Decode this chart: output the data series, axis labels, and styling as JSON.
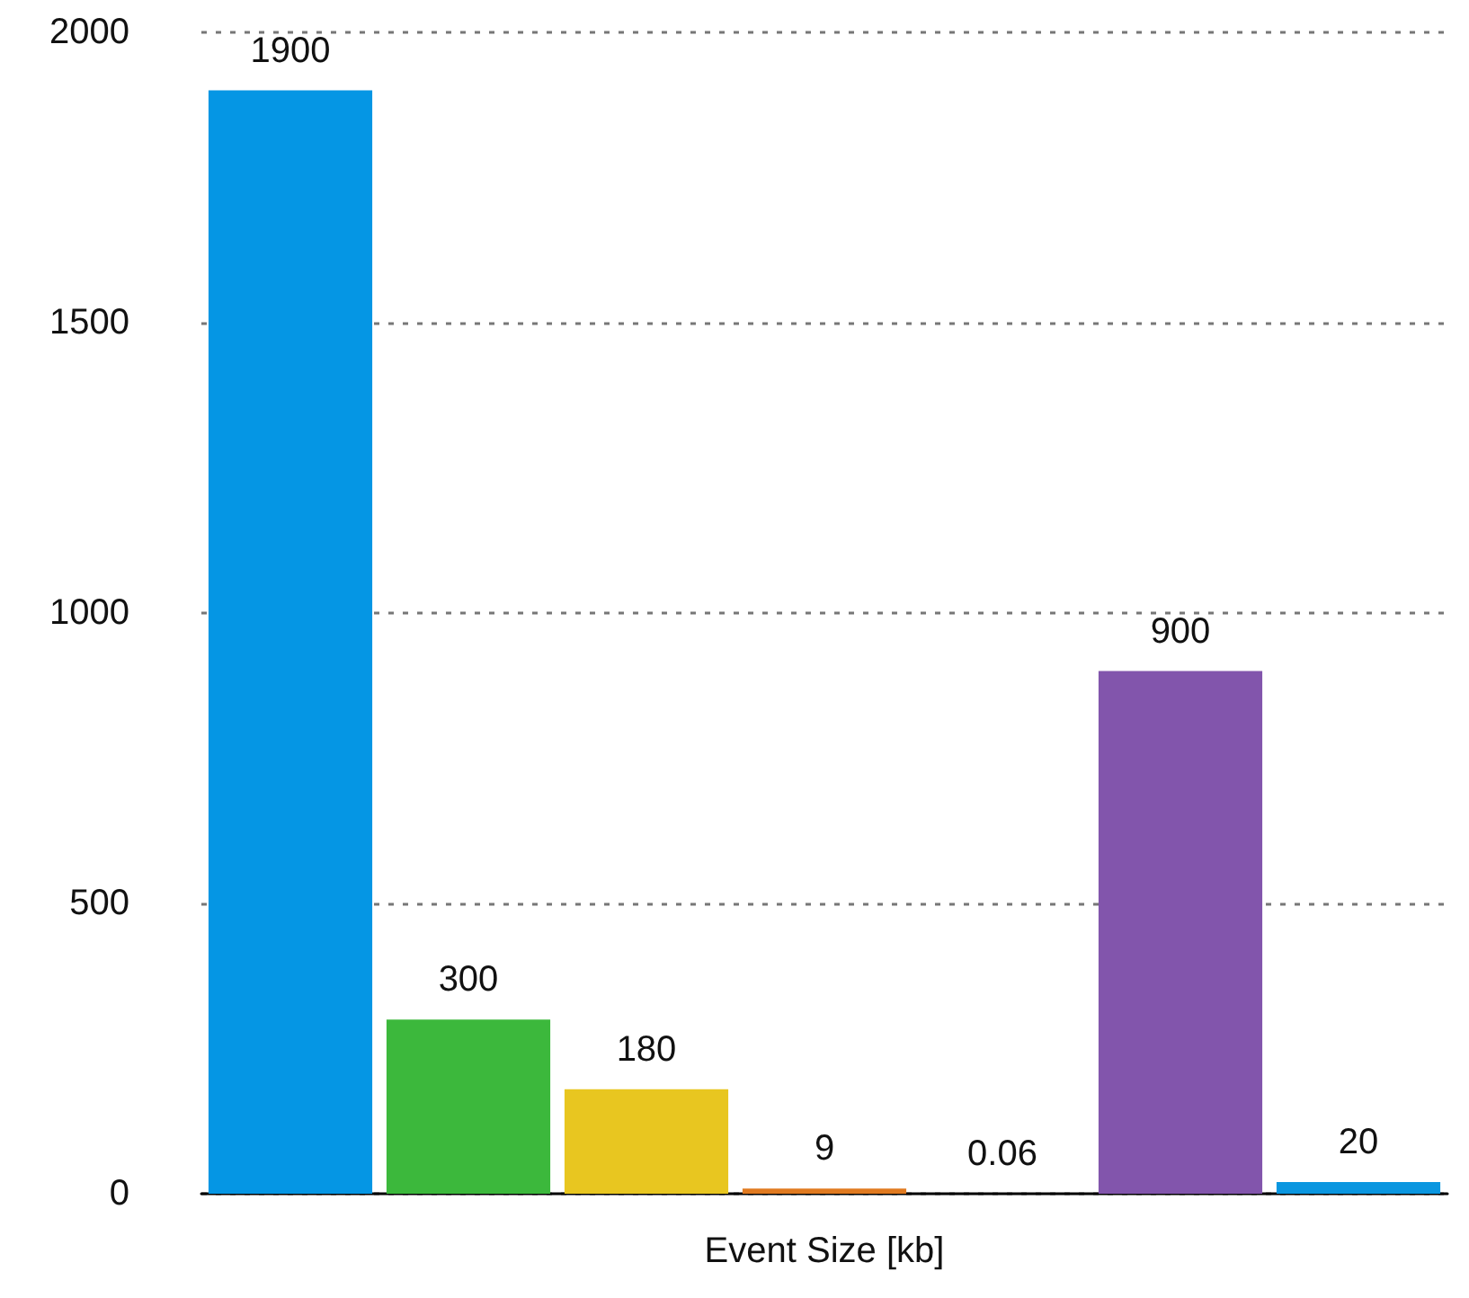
{
  "chart_data": {
    "type": "bar",
    "xlabel": "Event Size [kb]",
    "categories": [
      null,
      null,
      null,
      null,
      null,
      null,
      null
    ],
    "values": [
      1900,
      300,
      180,
      9,
      0.06,
      900,
      20
    ],
    "colors": [
      "#0596e4",
      "#3cb83c",
      "#e8c620",
      "#e07a20",
      "#d04030",
      "#8255ac",
      "#0a96e0"
    ],
    "ylim": [
      0,
      2000
    ],
    "yticks": [
      0,
      500,
      1000,
      1500,
      2000
    ],
    "grid": "y",
    "data_labels": true
  }
}
